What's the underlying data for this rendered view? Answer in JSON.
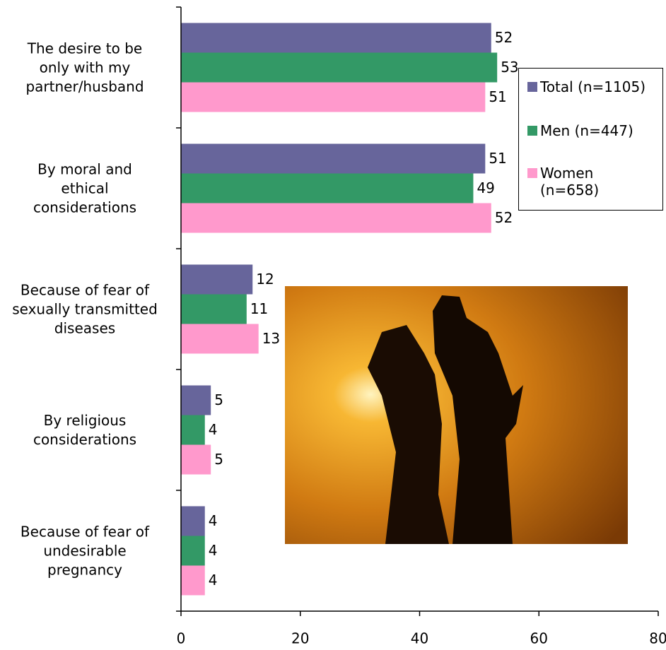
{
  "chart_data": {
    "type": "hbar",
    "categories": [
      "The desire to be\nonly with my\npartner/husband",
      "By moral and\nethical\nconsiderations",
      "Because of fear of\nsexually transmitted\ndiseases",
      "By religious\nconsiderations",
      "Because of fear of\nundesirable\npregnancy"
    ],
    "series": [
      {
        "name": "Total (n=1105)",
        "color": "#67659b",
        "values": [
          52,
          51,
          12,
          5,
          4
        ]
      },
      {
        "name": "Men (n=447)",
        "color": "#339966",
        "values": [
          53,
          49,
          11,
          4,
          4
        ]
      },
      {
        "name": "Women\n(n=658)",
        "color": "#ff99cc",
        "values": [
          51,
          52,
          13,
          5,
          4
        ]
      }
    ],
    "xlim": [
      0,
      80
    ],
    "xticks": [
      0,
      20,
      40,
      60,
      80
    ],
    "legend": "right"
  }
}
